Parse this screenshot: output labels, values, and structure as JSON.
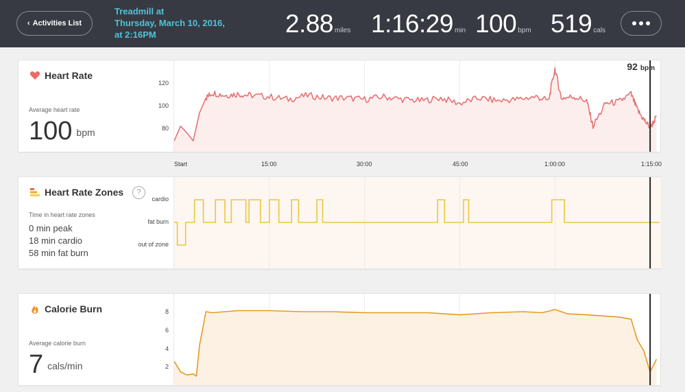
{
  "header": {
    "back_label": "Activities List",
    "title_lines": [
      "Treadmill at",
      "Thursday, March 10, 2016,",
      "at 2:16PM"
    ],
    "stats": [
      {
        "value": "2.88",
        "unit": "miles"
      },
      {
        "value": "1:16:29",
        "unit": "min"
      },
      {
        "value": "100",
        "unit": "bpm"
      },
      {
        "value": "519",
        "unit": "cals"
      }
    ]
  },
  "heart_rate": {
    "title": "Heart Rate",
    "avg_label": "Average heart rate",
    "avg_value": "100",
    "avg_unit": "bpm",
    "current_value": "92",
    "current_unit": "bpm",
    "y_ticks": [
      "120",
      "100",
      "80"
    ],
    "x_ticks": [
      "Start",
      "15:00",
      "30:00",
      "45:00",
      "1:00:00",
      "1:15:00"
    ]
  },
  "zones": {
    "title": "Heart Rate Zones",
    "help": "?",
    "label": "Time in heart rate zones",
    "lines": [
      "0 min peak",
      "18 min cardio",
      "58 min fat burn"
    ],
    "y_ticks": [
      "cardio",
      "fat burn",
      "out of zone"
    ]
  },
  "calories": {
    "title": "Calorie Burn",
    "avg_label": "Average calorie burn",
    "avg_value": "7",
    "avg_unit": "cals/min",
    "y_ticks": [
      "8",
      "6",
      "4",
      "2"
    ]
  },
  "colors": {
    "header_bg": "#373a42",
    "title_accent": "#4fc3d9",
    "heart_line": "#e57373",
    "heart_fill": "#fdeeee",
    "zone_line": "#eac73c",
    "zone_fill": "#fdf6f1",
    "cal_line": "#e59a1f",
    "cal_fill": "#fdf1e4"
  },
  "chart_data": [
    {
      "type": "line",
      "title": "Heart Rate",
      "xlabel": "",
      "ylabel": "",
      "ylim": [
        70,
        130
      ],
      "x": [
        "Start",
        "1:00",
        "2:00",
        "3:00",
        "4:00",
        "5:00",
        "6:00",
        "8:00",
        "10:00",
        "12:00",
        "15:00",
        "18:00",
        "21:00",
        "24:00",
        "27:00",
        "30:00",
        "33:00",
        "36:00",
        "39:00",
        "42:00",
        "45:00",
        "48:00",
        "51:00",
        "54:00",
        "57:00",
        "59:00",
        "1:00:00",
        "1:01:00",
        "1:03:00",
        "1:05:00",
        "1:06:00",
        "1:08:00",
        "1:10:00",
        "1:12:00",
        "1:13:00",
        "1:14:00",
        "1:15:00",
        "1:16:00"
      ],
      "series": [
        {
          "values": [
            74,
            85,
            80,
            74,
            95,
            106,
            110,
            108,
            109,
            108,
            107,
            105,
            108,
            106,
            106,
            105,
            107,
            105,
            104,
            106,
            102,
            106,
            104,
            105,
            107,
            104,
            128,
            106,
            107,
            104,
            85,
            102,
            103,
            109,
            97,
            90,
            84,
            92
          ]
        }
      ]
    },
    {
      "type": "line",
      "title": "Heart Rate Zones",
      "categories": [
        "out of zone",
        "fat burn",
        "cardio"
      ],
      "series": [
        {
          "values_by_segment": [
            [
              0,
              1
            ],
            [
              0.5,
              1
            ],
            [
              0.5,
              0
            ],
            [
              1.8,
              0
            ],
            [
              1.8,
              1
            ],
            [
              3.2,
              1
            ],
            [
              3.2,
              2
            ],
            [
              4.6,
              2
            ],
            [
              4.6,
              1
            ],
            [
              6.5,
              1
            ],
            [
              6.5,
              2
            ],
            [
              8.0,
              2
            ],
            [
              8.0,
              1
            ],
            [
              9.0,
              1
            ],
            [
              9.0,
              2
            ],
            [
              11.3,
              2
            ],
            [
              11.3,
              1
            ],
            [
              11.8,
              1
            ],
            [
              11.8,
              2
            ],
            [
              13.6,
              2
            ],
            [
              13.6,
              1
            ],
            [
              15.0,
              1
            ],
            [
              15.0,
              2
            ],
            [
              16.5,
              2
            ],
            [
              16.5,
              1
            ],
            [
              18.5,
              1
            ],
            [
              18.5,
              2
            ],
            [
              19.6,
              2
            ],
            [
              19.6,
              1
            ],
            [
              22.5,
              1
            ],
            [
              22.5,
              2
            ],
            [
              23.4,
              2
            ],
            [
              23.4,
              1
            ],
            [
              41.5,
              1
            ],
            [
              41.5,
              2
            ],
            [
              42.6,
              2
            ],
            [
              42.6,
              1
            ],
            [
              45.6,
              1
            ],
            [
              45.6,
              2
            ],
            [
              46.4,
              2
            ],
            [
              46.4,
              1
            ],
            [
              59.5,
              1
            ],
            [
              59.5,
              2
            ],
            [
              61.5,
              2
            ],
            [
              61.5,
              1
            ],
            [
              76.5,
              1
            ]
          ]
        }
      ]
    },
    {
      "type": "line",
      "title": "Calorie Burn",
      "ylim": [
        1,
        9
      ],
      "x": [
        "Start",
        "1:00",
        "2:00",
        "3:00",
        "3:30",
        "4:00",
        "5:00",
        "6:00",
        "10:00",
        "15:00",
        "20:00",
        "25:00",
        "30:00",
        "35:00",
        "40:00",
        "45:00",
        "50:00",
        "55:00",
        "58:00",
        "60:00",
        "62:00",
        "65:00",
        "70:00",
        "72:00",
        "73:00",
        "74:00",
        "75:00",
        "76:00"
      ],
      "series": [
        {
          "values": [
            3.0,
            2.0,
            1.7,
            1.8,
            1.6,
            4.5,
            7.7,
            7.6,
            7.8,
            7.8,
            7.7,
            7.7,
            7.6,
            7.6,
            7.6,
            7.4,
            7.6,
            7.7,
            7.6,
            7.9,
            7.5,
            7.4,
            7.2,
            7.0,
            5.0,
            4.0,
            2.0,
            3.2
          ]
        }
      ]
    }
  ]
}
